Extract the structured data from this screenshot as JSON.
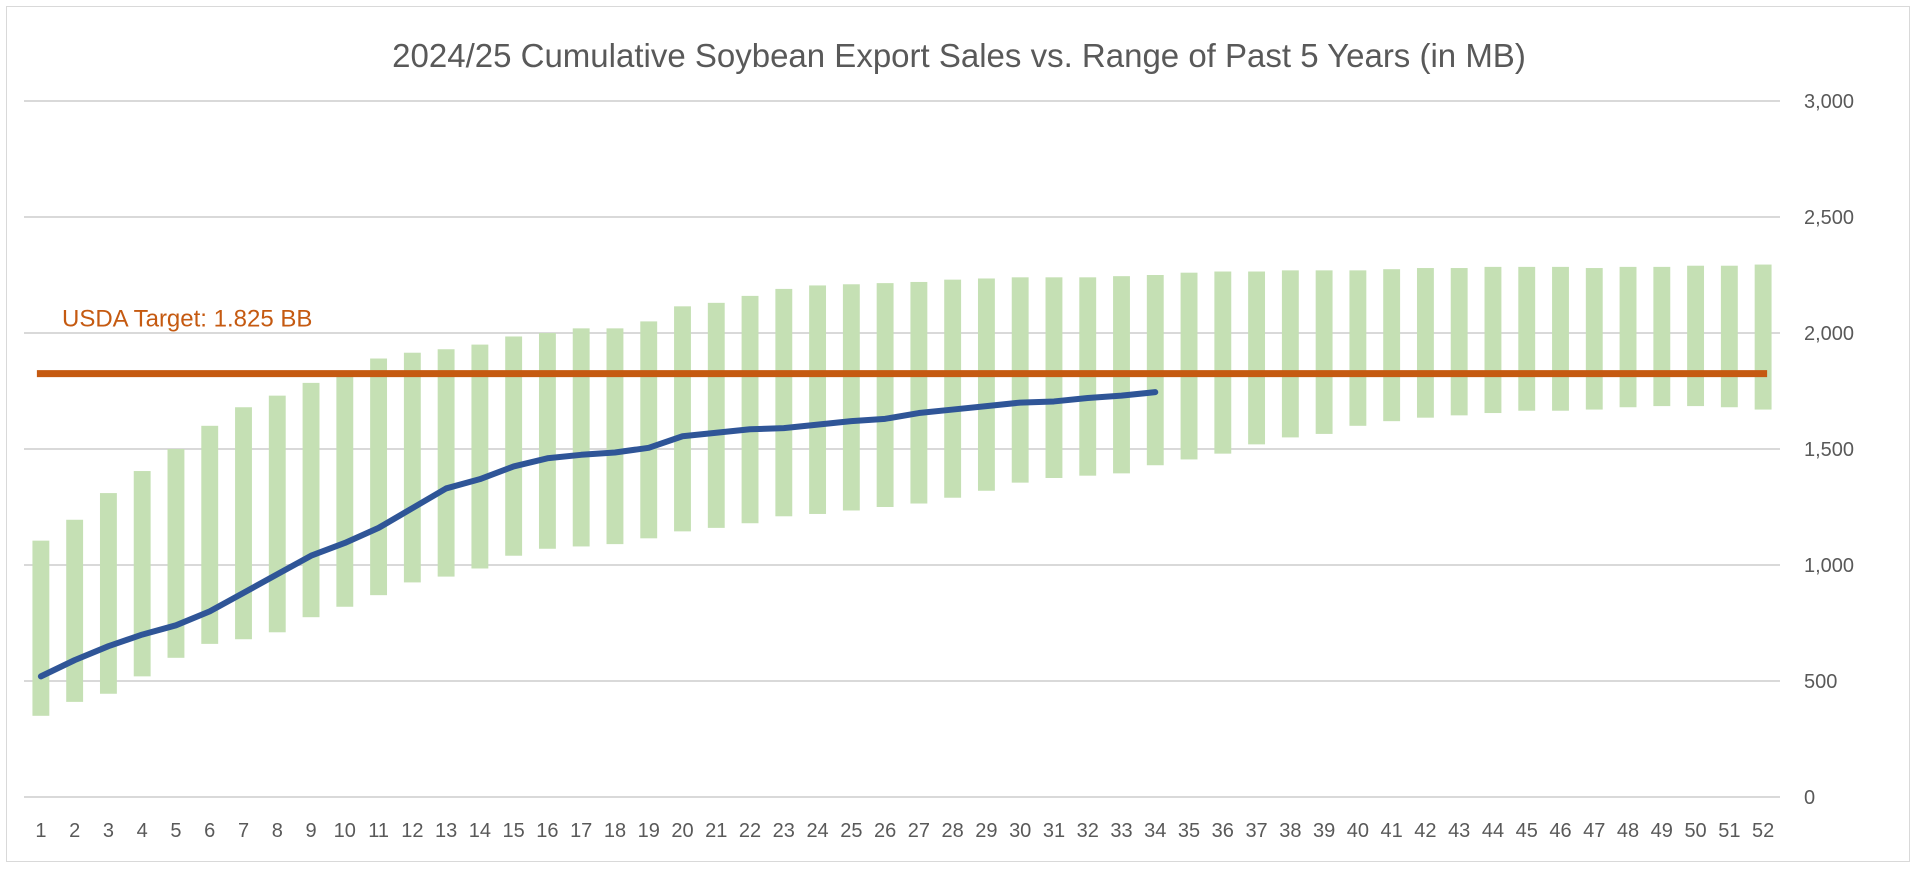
{
  "chart_data": {
    "type": "bar",
    "title": "2024/25 Cumulative Soybean Export Sales vs. Range of Past 5 Years (in MB)",
    "xlabel": "",
    "ylabel": "",
    "y_axis_position": "right",
    "ylim": [
      0,
      3000
    ],
    "yticks": [
      0,
      500,
      1000,
      1500,
      2000,
      2500,
      3000
    ],
    "ytick_labels": [
      "0",
      "500",
      "1,000",
      "1,500",
      "2,000",
      "2,500",
      "3,000"
    ],
    "grid": true,
    "legend": "none",
    "categories": [
      "1",
      "2",
      "3",
      "4",
      "5",
      "6",
      "7",
      "8",
      "9",
      "10",
      "11",
      "12",
      "13",
      "14",
      "15",
      "16",
      "17",
      "18",
      "19",
      "20",
      "21",
      "22",
      "23",
      "24",
      "25",
      "26",
      "27",
      "28",
      "29",
      "30",
      "31",
      "32",
      "33",
      "34",
      "35",
      "36",
      "37",
      "38",
      "39",
      "40",
      "41",
      "42",
      "43",
      "44",
      "45",
      "46",
      "47",
      "48",
      "49",
      "50",
      "51",
      "52"
    ],
    "range_low": [
      350,
      410,
      445,
      520,
      600,
      660,
      680,
      710,
      775,
      820,
      870,
      925,
      950,
      985,
      1040,
      1070,
      1080,
      1090,
      1115,
      1145,
      1160,
      1180,
      1210,
      1220,
      1235,
      1250,
      1265,
      1290,
      1320,
      1355,
      1375,
      1385,
      1395,
      1430,
      1455,
      1480,
      1520,
      1550,
      1565,
      1600,
      1620,
      1635,
      1645,
      1655,
      1665,
      1665,
      1670,
      1680,
      1685,
      1685,
      1680,
      1670
    ],
    "range_high": [
      1105,
      1195,
      1310,
      1405,
      1500,
      1600,
      1680,
      1730,
      1785,
      1830,
      1890,
      1915,
      1930,
      1950,
      1985,
      2000,
      2020,
      2020,
      2050,
      2115,
      2130,
      2160,
      2190,
      2205,
      2210,
      2215,
      2220,
      2230,
      2235,
      2240,
      2240,
      2240,
      2245,
      2250,
      2260,
      2265,
      2265,
      2270,
      2270,
      2270,
      2275,
      2280,
      2280,
      2285,
      2285,
      2285,
      2280,
      2285,
      2285,
      2290,
      2290,
      2295
    ],
    "current_year": [
      520,
      590,
      650,
      700,
      740,
      800,
      880,
      960,
      1040,
      1095,
      1160,
      1245,
      1330,
      1370,
      1425,
      1460,
      1475,
      1485,
      1505,
      1555,
      1570,
      1585,
      1590,
      1605,
      1620,
      1630,
      1655,
      1670,
      1685,
      1700,
      1705,
      1720,
      1730,
      1745
    ],
    "target_value": 1825,
    "target_label": "USDA Target: 1.825 BB",
    "colors": {
      "range": "#c5e0b4",
      "current": "#2f5597",
      "target": "#c55a11",
      "grid": "#d9d9d9",
      "text": "#595959"
    }
  }
}
